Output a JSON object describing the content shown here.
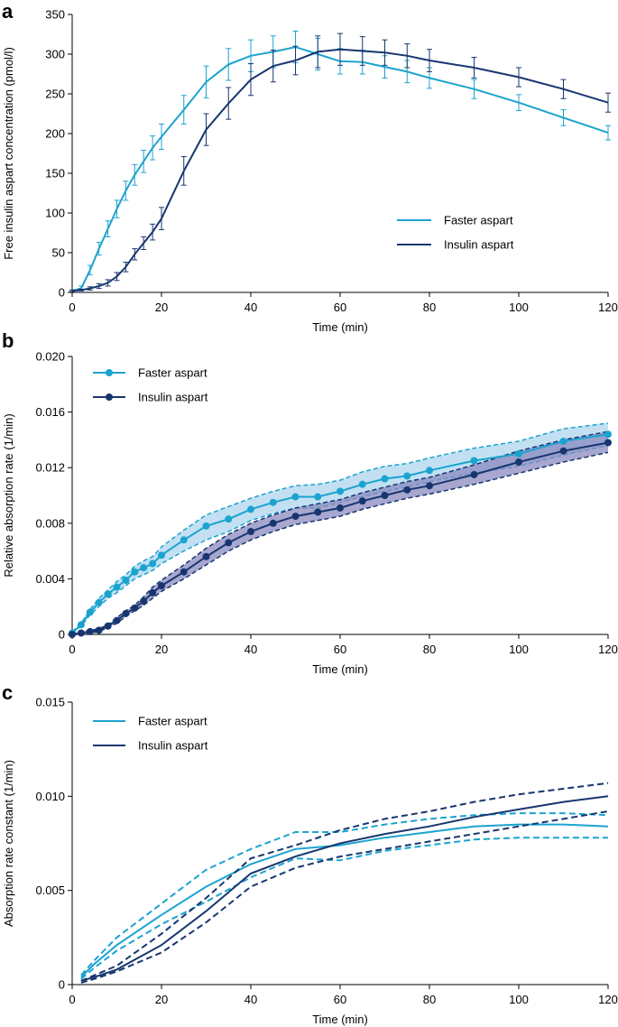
{
  "colors": {
    "faster": "#1ba3cf",
    "insulin": "#17366f",
    "faster_band": "#aed6ee",
    "insulin_band": "#8a8abf"
  },
  "chart_data": [
    {
      "panel": "a",
      "type": "line",
      "title": "",
      "xlabel": "Time (min)",
      "ylabel": "Free insulin aspart concentration (pmol/l)",
      "xlim": [
        0,
        120
      ],
      "ylim": [
        0,
        350
      ],
      "xticks": [
        0,
        20,
        40,
        60,
        80,
        100,
        120
      ],
      "yticks": [
        0,
        50,
        100,
        150,
        200,
        250,
        300,
        350
      ],
      "legend": {
        "position": "center-right"
      },
      "series": [
        {
          "name": "Faster aspart",
          "color_key": "faster",
          "x": [
            0,
            2,
            4,
            6,
            8,
            10,
            12,
            14,
            16,
            18,
            20,
            25,
            30,
            35,
            40,
            45,
            50,
            55,
            60,
            65,
            70,
            75,
            80,
            90,
            100,
            110,
            120
          ],
          "values": [
            2,
            5,
            28,
            55,
            80,
            105,
            128,
            148,
            165,
            182,
            196,
            230,
            265,
            287,
            298,
            303,
            309,
            300,
            291,
            290,
            284,
            278,
            270,
            256,
            239,
            220,
            201
          ],
          "err": [
            1,
            3,
            6,
            8,
            10,
            11,
            12,
            13,
            14,
            15,
            16,
            18,
            20,
            20,
            20,
            20,
            20,
            20,
            16,
            15,
            14,
            14,
            13,
            12,
            10,
            10,
            9
          ]
        },
        {
          "name": "Insulin aspart",
          "color_key": "insulin",
          "x": [
            0,
            2,
            4,
            6,
            8,
            10,
            12,
            14,
            16,
            18,
            20,
            25,
            30,
            35,
            40,
            45,
            50,
            55,
            60,
            65,
            70,
            75,
            80,
            90,
            100,
            110,
            120
          ],
          "values": [
            2,
            3,
            5,
            8,
            12,
            20,
            32,
            48,
            62,
            76,
            93,
            153,
            205,
            238,
            268,
            285,
            292,
            303,
            306,
            304,
            302,
            298,
            292,
            283,
            271,
            256,
            239
          ],
          "err": [
            1,
            1,
            2,
            3,
            4,
            5,
            6,
            7,
            8,
            10,
            14,
            18,
            20,
            20,
            20,
            20,
            18,
            20,
            20,
            18,
            16,
            15,
            14,
            13,
            12,
            12,
            12
          ]
        }
      ]
    },
    {
      "panel": "b",
      "type": "line",
      "title": "",
      "xlabel": "Time (min)",
      "ylabel": "Relative absorption rate (1/min)",
      "xlim": [
        0,
        120
      ],
      "ylim": [
        0,
        0.02
      ],
      "xticks": [
        0,
        20,
        40,
        60,
        80,
        100,
        120
      ],
      "yticks": [
        "0",
        "0.004",
        "0.008",
        "0.012",
        "0.016",
        "0.020"
      ],
      "legend": {
        "position": "top-left"
      },
      "series": [
        {
          "name": "Faster aspart",
          "color_key": "faster",
          "band_key": "faster_band",
          "markers": true,
          "x": [
            0,
            2,
            4,
            6,
            8,
            10,
            12,
            14,
            16,
            18,
            20,
            25,
            30,
            35,
            40,
            45,
            50,
            55,
            60,
            65,
            70,
            75,
            80,
            90,
            100,
            110,
            120
          ],
          "values": [
            0.0001,
            0.0007,
            0.0016,
            0.0023,
            0.0029,
            0.0034,
            0.0039,
            0.0045,
            0.0048,
            0.0051,
            0.0057,
            0.0068,
            0.0078,
            0.0083,
            0.009,
            0.0095,
            0.0099,
            0.0099,
            0.0103,
            0.0108,
            0.0112,
            0.0114,
            0.0118,
            0.0125,
            0.013,
            0.0139,
            0.0144
          ],
          "lower": [
            0.0001,
            0.0006,
            0.0014,
            0.002,
            0.0026,
            0.003,
            0.0035,
            0.004,
            0.0043,
            0.0046,
            0.0051,
            0.006,
            0.0068,
            0.0074,
            0.0082,
            0.0087,
            0.0091,
            0.0091,
            0.0095,
            0.0099,
            0.0103,
            0.0106,
            0.011,
            0.0116,
            0.0121,
            0.0129,
            0.0136
          ],
          "upper": [
            0.0002,
            0.0008,
            0.0018,
            0.0026,
            0.0032,
            0.0038,
            0.0043,
            0.0049,
            0.0053,
            0.0056,
            0.0063,
            0.0075,
            0.0086,
            0.0092,
            0.0098,
            0.0103,
            0.0107,
            0.0108,
            0.0111,
            0.0117,
            0.0121,
            0.0123,
            0.0127,
            0.0134,
            0.0139,
            0.0148,
            0.0152
          ]
        },
        {
          "name": "Insulin aspart",
          "color_key": "insulin",
          "band_key": "insulin_band",
          "markers": true,
          "x": [
            0,
            2,
            4,
            6,
            8,
            10,
            12,
            14,
            16,
            18,
            20,
            25,
            30,
            35,
            40,
            45,
            50,
            55,
            60,
            65,
            70,
            75,
            80,
            90,
            100,
            110,
            120
          ],
          "values": [
            0.0,
            0.0001,
            0.0002,
            0.0003,
            0.0006,
            0.001,
            0.0015,
            0.0019,
            0.0024,
            0.003,
            0.0035,
            0.0045,
            0.0056,
            0.0066,
            0.0074,
            0.008,
            0.0085,
            0.0088,
            0.0091,
            0.0096,
            0.01,
            0.0104,
            0.0107,
            0.0115,
            0.0124,
            0.0132,
            0.0138
          ],
          "lower": [
            0.0,
            0.0,
            0.0001,
            0.0002,
            0.0005,
            0.0008,
            0.0013,
            0.0017,
            0.0021,
            0.0026,
            0.0031,
            0.004,
            0.005,
            0.006,
            0.0068,
            0.0074,
            0.0079,
            0.0082,
            0.0085,
            0.009,
            0.0094,
            0.0098,
            0.0101,
            0.0108,
            0.0116,
            0.0124,
            0.0131
          ],
          "upper": [
            0.0,
            0.0002,
            0.0003,
            0.0004,
            0.0007,
            0.0012,
            0.0017,
            0.0021,
            0.0027,
            0.0034,
            0.0039,
            0.005,
            0.0062,
            0.0072,
            0.008,
            0.0086,
            0.0091,
            0.0094,
            0.0097,
            0.0102,
            0.0106,
            0.011,
            0.0113,
            0.0122,
            0.0132,
            0.014,
            0.0146
          ]
        }
      ]
    },
    {
      "panel": "c",
      "type": "line",
      "title": "",
      "xlabel": "Time (min)",
      "ylabel": "Absorption rate constant (1/min)",
      "xlim": [
        0,
        120
      ],
      "ylim": [
        0,
        0.015
      ],
      "xticks": [
        0,
        20,
        40,
        60,
        80,
        100,
        120
      ],
      "yticks": [
        "0",
        "0.005",
        "0.010",
        "0.015"
      ],
      "legend": {
        "position": "top-left"
      },
      "series": [
        {
          "name": "Faster aspart",
          "color_key": "faster",
          "x": [
            2,
            5,
            10,
            20,
            30,
            40,
            50,
            60,
            70,
            80,
            90,
            100,
            110,
            120
          ],
          "values": [
            0.0004,
            0.0011,
            0.0021,
            0.0037,
            0.0052,
            0.0064,
            0.0072,
            0.0074,
            0.0078,
            0.0081,
            0.0084,
            0.0085,
            0.0085,
            0.0084
          ],
          "lower": [
            0.0003,
            0.0009,
            0.0018,
            0.0032,
            0.0044,
            0.0057,
            0.0067,
            0.0066,
            0.0071,
            0.0074,
            0.0077,
            0.0078,
            0.0078,
            0.0078
          ],
          "upper": [
            0.0005,
            0.0013,
            0.0025,
            0.0043,
            0.0061,
            0.0072,
            0.0081,
            0.0081,
            0.0085,
            0.0088,
            0.009,
            0.0091,
            0.0091,
            0.009
          ]
        },
        {
          "name": "Insulin aspart",
          "color_key": "insulin",
          "x": [
            2,
            5,
            10,
            20,
            30,
            40,
            50,
            60,
            70,
            80,
            90,
            100,
            110,
            120
          ],
          "values": [
            0.0002,
            0.0004,
            0.0008,
            0.0021,
            0.0039,
            0.0059,
            0.0068,
            0.0075,
            0.008,
            0.0084,
            0.0089,
            0.0093,
            0.0097,
            0.01
          ],
          "lower": [
            0.0001,
            0.0003,
            0.0007,
            0.0017,
            0.0033,
            0.0052,
            0.0062,
            0.0068,
            0.0072,
            0.0076,
            0.008,
            0.0084,
            0.0088,
            0.0092
          ],
          "upper": [
            0.0002,
            0.0005,
            0.001,
            0.0027,
            0.0046,
            0.0067,
            0.0074,
            0.0082,
            0.0088,
            0.0092,
            0.0097,
            0.0101,
            0.0104,
            0.0107
          ]
        }
      ]
    }
  ]
}
